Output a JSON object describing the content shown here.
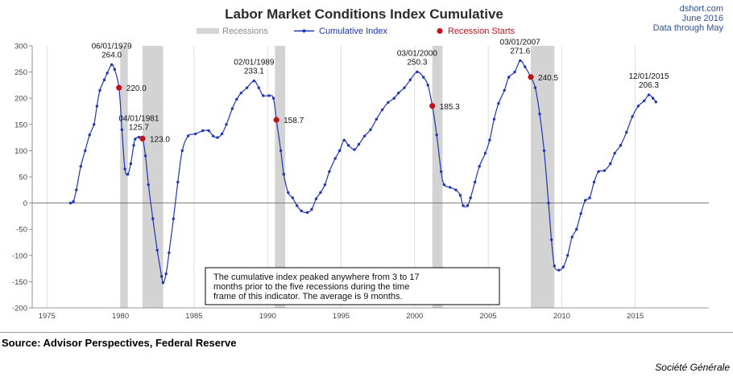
{
  "chart_data": {
    "type": "line",
    "title": "Labor Market Conditions Index Cumulative",
    "header_right": [
      "dshort.com",
      "June 2016",
      "Data through May"
    ],
    "legend": {
      "recessions": "Recessions",
      "series": "Cumulative Index",
      "recession_starts": "Recession Starts"
    },
    "xlim": [
      1974,
      2020
    ],
    "ylim": [
      -200,
      300
    ],
    "x_ticks": [
      1975,
      1980,
      1985,
      1990,
      1995,
      2000,
      2005,
      2010,
      2015
    ],
    "x_tick_labels": [
      "1975",
      "1980",
      "1985",
      "1990",
      "1995",
      "2000",
      "2005",
      "2010",
      "2015"
    ],
    "y_ticks": [
      -200,
      -150,
      -100,
      -50,
      0,
      50,
      100,
      150,
      200,
      250,
      300
    ],
    "y_tick_labels": [
      "-200",
      "-150",
      "-100",
      "-50",
      "0",
      "50",
      "100",
      "150",
      "200",
      "250",
      "300"
    ],
    "grid": "vertical",
    "recessions": [
      [
        1980.0,
        1980.5
      ],
      [
        1981.5,
        1982.9
      ],
      [
        1990.5,
        1991.2
      ],
      [
        2001.2,
        2001.9
      ],
      [
        2007.9,
        2009.5
      ]
    ],
    "series_points": [
      [
        1976.6,
        0
      ],
      [
        1976.8,
        3
      ],
      [
        1977.0,
        25
      ],
      [
        1977.3,
        70
      ],
      [
        1977.6,
        100
      ],
      [
        1977.9,
        130
      ],
      [
        1978.2,
        150
      ],
      [
        1978.4,
        185
      ],
      [
        1978.6,
        215
      ],
      [
        1978.9,
        235
      ],
      [
        1979.1,
        248
      ],
      [
        1979.4,
        264
      ],
      [
        1979.6,
        255
      ],
      [
        1979.9,
        220
      ],
      [
        1980.1,
        140
      ],
      [
        1980.3,
        65
      ],
      [
        1980.5,
        55
      ],
      [
        1980.7,
        75
      ],
      [
        1980.9,
        110
      ],
      [
        1981.0,
        122
      ],
      [
        1981.25,
        125.7
      ],
      [
        1981.5,
        123
      ],
      [
        1981.7,
        90
      ],
      [
        1981.9,
        35
      ],
      [
        1982.2,
        -30
      ],
      [
        1982.5,
        -90
      ],
      [
        1982.8,
        -140
      ],
      [
        1982.9,
        -152
      ],
      [
        1983.1,
        -135
      ],
      [
        1983.3,
        -95
      ],
      [
        1983.6,
        -30
      ],
      [
        1983.9,
        40
      ],
      [
        1984.2,
        100
      ],
      [
        1984.6,
        128
      ],
      [
        1985.1,
        132
      ],
      [
        1985.6,
        138
      ],
      [
        1986.0,
        138
      ],
      [
        1986.3,
        128
      ],
      [
        1986.6,
        125
      ],
      [
        1986.9,
        132
      ],
      [
        1987.2,
        150
      ],
      [
        1987.6,
        180
      ],
      [
        1987.9,
        198
      ],
      [
        1988.2,
        210
      ],
      [
        1988.6,
        220
      ],
      [
        1989.08,
        233.1
      ],
      [
        1989.4,
        220
      ],
      [
        1989.7,
        205
      ],
      [
        1990.1,
        205
      ],
      [
        1990.4,
        200
      ],
      [
        1990.6,
        158.7
      ],
      [
        1990.9,
        100
      ],
      [
        1991.1,
        55
      ],
      [
        1991.4,
        20
      ],
      [
        1991.7,
        10
      ],
      [
        1992.0,
        -5
      ],
      [
        1992.3,
        -15
      ],
      [
        1992.7,
        -18
      ],
      [
        1993.0,
        -12
      ],
      [
        1993.3,
        8
      ],
      [
        1993.6,
        20
      ],
      [
        1993.9,
        35
      ],
      [
        1994.2,
        60
      ],
      [
        1994.6,
        85
      ],
      [
        1994.9,
        100
      ],
      [
        1995.2,
        120
      ],
      [
        1995.5,
        110
      ],
      [
        1995.9,
        102
      ],
      [
        1996.2,
        112
      ],
      [
        1996.6,
        128
      ],
      [
        1997.0,
        140
      ],
      [
        1997.4,
        160
      ],
      [
        1997.8,
        178
      ],
      [
        1998.2,
        192
      ],
      [
        1998.6,
        200
      ],
      [
        1998.9,
        210
      ],
      [
        1999.3,
        220
      ],
      [
        1999.7,
        235
      ],
      [
        2000.17,
        250.3
      ],
      [
        2000.6,
        240
      ],
      [
        2000.9,
        225
      ],
      [
        2001.2,
        185.3
      ],
      [
        2001.5,
        130
      ],
      [
        2001.8,
        60
      ],
      [
        2002.0,
        35
      ],
      [
        2002.4,
        30
      ],
      [
        2002.8,
        25
      ],
      [
        2003.1,
        15
      ],
      [
        2003.3,
        -5
      ],
      [
        2003.6,
        -5
      ],
      [
        2003.8,
        10
      ],
      [
        2004.1,
        40
      ],
      [
        2004.4,
        70
      ],
      [
        2004.8,
        95
      ],
      [
        2005.1,
        120
      ],
      [
        2005.4,
        160
      ],
      [
        2005.7,
        190
      ],
      [
        2006.1,
        215
      ],
      [
        2006.4,
        240
      ],
      [
        2006.8,
        250
      ],
      [
        2007.17,
        271.6
      ],
      [
        2007.5,
        260
      ],
      [
        2007.9,
        240.5
      ],
      [
        2008.2,
        220
      ],
      [
        2008.5,
        170
      ],
      [
        2008.8,
        100
      ],
      [
        2009.1,
        0
      ],
      [
        2009.3,
        -70
      ],
      [
        2009.5,
        -120
      ],
      [
        2009.8,
        -128
      ],
      [
        2010.1,
        -122
      ],
      [
        2010.4,
        -100
      ],
      [
        2010.7,
        -65
      ],
      [
        2011.0,
        -50
      ],
      [
        2011.3,
        -20
      ],
      [
        2011.6,
        5
      ],
      [
        2011.9,
        10
      ],
      [
        2012.2,
        40
      ],
      [
        2012.5,
        60
      ],
      [
        2012.9,
        62
      ],
      [
        2013.3,
        75
      ],
      [
        2013.6,
        95
      ],
      [
        2014.0,
        110
      ],
      [
        2014.4,
        135
      ],
      [
        2014.8,
        165
      ],
      [
        2015.2,
        185
      ],
      [
        2015.6,
        195
      ],
      [
        2015.92,
        206.3
      ],
      [
        2016.2,
        200
      ],
      [
        2016.4,
        193
      ]
    ],
    "recession_starts": [
      [
        1979.9,
        220
      ],
      [
        1981.5,
        123
      ],
      [
        1990.6,
        158.7
      ],
      [
        2001.2,
        185.3
      ],
      [
        2007.9,
        240.5
      ]
    ],
    "annotations": [
      {
        "lines": [
          "06/01/1979",
          "264.0"
        ],
        "x": 1979.4,
        "y": 264.0
      },
      {
        "lines": [
          "220.0"
        ],
        "x": 1979.9,
        "y": 220.0
      },
      {
        "lines": [
          "04/01/1981",
          "125.7"
        ],
        "x": 1981.25,
        "y": 125.7
      },
      {
        "lines": [
          "123.0"
        ],
        "x": 1981.5,
        "y": 123.0
      },
      {
        "lines": [
          "02/01/1989",
          "233.1"
        ],
        "x": 1989.08,
        "y": 233.1
      },
      {
        "lines": [
          "158.7"
        ],
        "x": 1990.6,
        "y": 158.7
      },
      {
        "lines": [
          "03/01/2000",
          "250.3"
        ],
        "x": 2000.17,
        "y": 250.3
      },
      {
        "lines": [
          "185.3"
        ],
        "x": 2001.2,
        "y": 185.3
      },
      {
        "lines": [
          "03/01/2007",
          "271.6"
        ],
        "x": 2007.17,
        "y": 271.6
      },
      {
        "lines": [
          "240.5"
        ],
        "x": 2007.9,
        "y": 240.5
      },
      {
        "lines": [
          "12/01/2015",
          "206.3"
        ],
        "x": 2015.92,
        "y": 206.3
      }
    ],
    "note": [
      "The cumulative index peaked anywhere from 3 to 17",
      "months prior to the five recessions during the time",
      "frame of this indicator. The average is 9 months."
    ],
    "colors": {
      "line": "#1f35b5",
      "recession_band": "#d3d3d3",
      "recession_marker": "#c0141b",
      "title": "#2b2b2b",
      "header_right": "#2f4f8f"
    }
  },
  "footer": {
    "source": "Source: Advisor Perspectives, Federal Reserve",
    "credit": "Société Générale"
  }
}
